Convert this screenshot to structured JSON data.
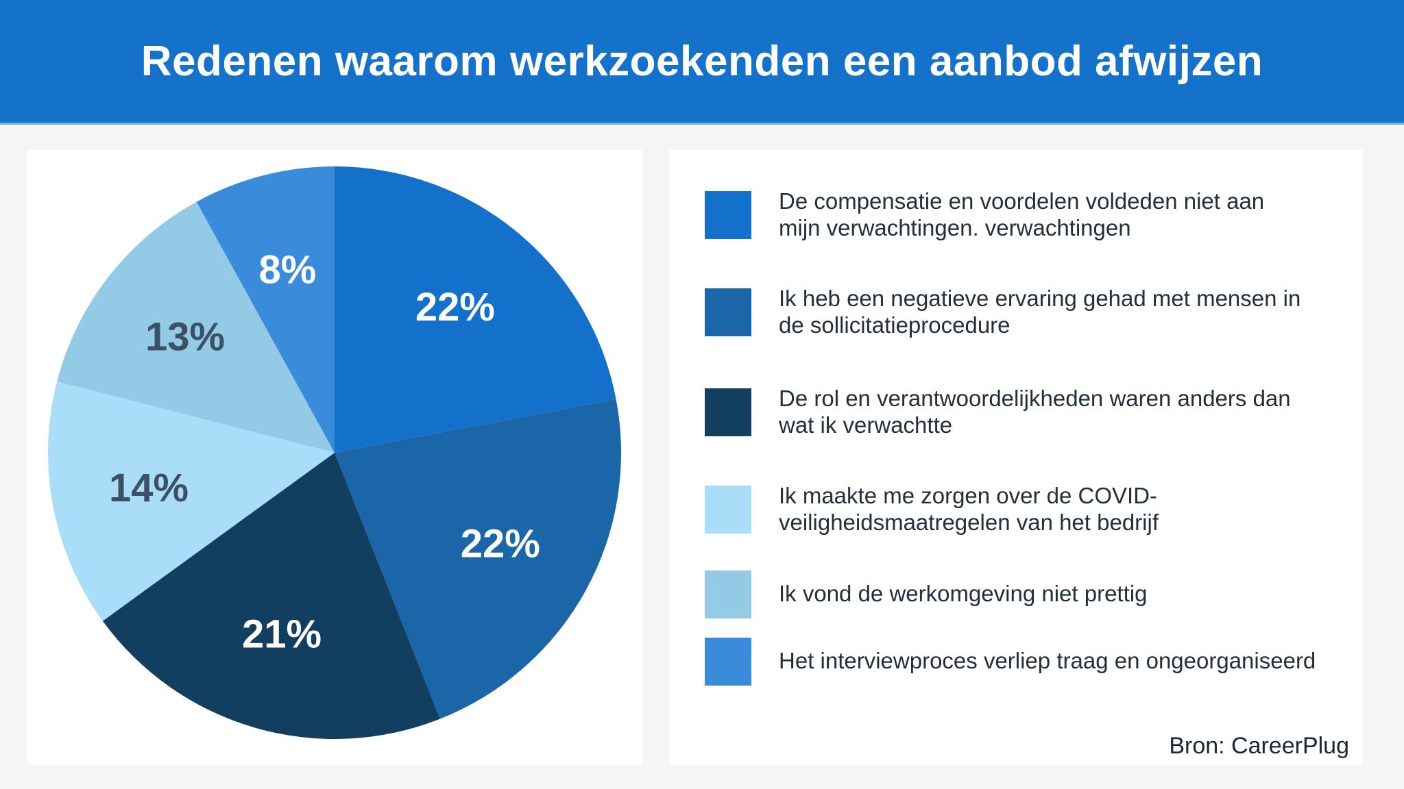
{
  "header": {
    "title": "Redenen waarom werkzoekenden een aanbod afwijzen"
  },
  "colors": {
    "header_bg": "#1472CB",
    "header_border": "#7FA9DC",
    "page_bg": "#F4F5F5",
    "card_bg": "#FFFFFF",
    "legend_text": "#232F3A",
    "slice_label_light": "#FFFFFF",
    "slice_label_dark": "#3C5166"
  },
  "chart_data": {
    "type": "pie",
    "title": "Redenen waarom werkzoekenden een aanbod afwijzen",
    "unit": "%",
    "start_angle_deg": 0,
    "direction": "clockwise",
    "legend_position": "right",
    "source": "Bron: CareerPlug",
    "slices": [
      {
        "label": "22%",
        "value": 22,
        "color": "#1471CB",
        "label_color": "#FFFFFF",
        "legend": "De compensatie en voordelen voldeden niet aan\nmijn verwachtingen. verwachtingen"
      },
      {
        "label": "22%",
        "value": 22,
        "color": "#1B66A9",
        "label_color": "#FFFFFF",
        "legend": "Ik heb een negatieve ervaring gehad met mensen in\nde sollicitatieprocedure"
      },
      {
        "label": "21%",
        "value": 21,
        "color": "#123E60",
        "label_color": "#FFFFFF",
        "legend": "De rol en verantwoordelijkheden waren anders dan\nwat ik verwachtte"
      },
      {
        "label": "14%",
        "value": 14,
        "color": "#AADDF8",
        "label_color": "#3C5166",
        "legend": "Ik maakte me zorgen over de COVID-\nveiligheidsmaatregelen van het bedrijf"
      },
      {
        "label": "13%",
        "value": 13,
        "color": "#93CBE7",
        "label_color": "#3C5166",
        "legend": "Ik vond de werkomgeving niet prettig"
      },
      {
        "label": "8%",
        "value": 8,
        "color": "#3A8CDA",
        "label_color": "#FFFFFF",
        "legend": "Het interviewproces verliep traag en ongeorganiseerd"
      }
    ]
  },
  "source_label": "Bron: CareerPlug"
}
